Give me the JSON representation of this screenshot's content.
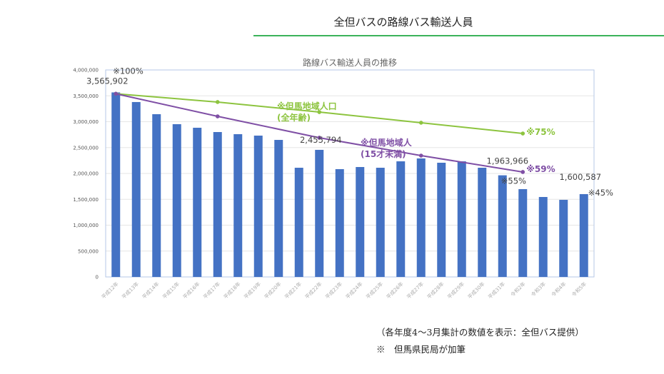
{
  "header": {
    "title": "全但バスの路線バス輸送人員"
  },
  "notes": {
    "source": "（各年度4～3月集計の数値を表示：全但バス提供）",
    "annotation": "※　但馬県民局が加筆"
  },
  "colors": {
    "bars": "#4472c4",
    "population_all": "#8dc43f",
    "population_under15": "#7f4fa5",
    "title_rule": "#3cb35a"
  },
  "chart_data": {
    "type": "bar",
    "title": "路線バス輸送人員の推移",
    "ylim": [
      0,
      4000000
    ],
    "yticks": [
      "0",
      "500,000",
      "1,000,000",
      "1,500,000",
      "2,000,000",
      "2,500,000",
      "3,000,000",
      "3,500,000",
      "4,000,000"
    ],
    "grid": true,
    "categories": [
      "平成12年",
      "平成13年",
      "平成14年",
      "平成15年",
      "平成16年",
      "平成17年",
      "平成18年",
      "平成19年",
      "平成20年",
      "平成21年",
      "平成22年",
      "平成23年",
      "平成24年",
      "平成25年",
      "平成26年",
      "平成27年",
      "平成28年",
      "平成29年",
      "平成30年",
      "平成31年",
      "令和2年",
      "令和3年",
      "令和4年",
      "令和5年"
    ],
    "values": [
      3565902,
      3380000,
      3145000,
      2952000,
      2883000,
      2800000,
      2759000,
      2731000,
      2648000,
      2110000,
      2455794,
      2083000,
      2124000,
      2110000,
      2234000,
      2290000,
      2207000,
      2234000,
      2110000,
      1963966,
      1697000,
      1545000,
      1490000,
      1600587
    ],
    "data_labels": [
      {
        "category": "平成12年",
        "text": "3,565,902",
        "note": "※100%"
      },
      {
        "category": "平成22年",
        "text": "2,455,794"
      },
      {
        "category": "平成31年",
        "text": "1,963,966",
        "note": "※55%"
      },
      {
        "category": "令和5年",
        "text": "1,600,587",
        "note": "※45%"
      }
    ],
    "lines": [
      {
        "name": "※但馬地域人口",
        "name2": "(全年齢)",
        "end_label": "※75%",
        "color": "#8dc43f",
        "points": [
          {
            "category": "平成12年",
            "value": 3540000
          },
          {
            "category": "平成17年",
            "value": 3380000
          },
          {
            "category": "平成22年",
            "value": 3186000
          },
          {
            "category": "平成27年",
            "value": 2980000
          },
          {
            "category": "令和2年",
            "value": 2772000
          }
        ]
      },
      {
        "name": "※但馬地域人",
        "name2": "(15才未満)",
        "end_label": "※59%",
        "color": "#7f4fa5",
        "points": [
          {
            "category": "平成12年",
            "value": 3540000
          },
          {
            "category": "平成17年",
            "value": 3103000
          },
          {
            "category": "平成22年",
            "value": 2690000
          },
          {
            "category": "平成27年",
            "value": 2345000
          },
          {
            "category": "令和2年",
            "value": 2028000
          }
        ]
      }
    ]
  }
}
